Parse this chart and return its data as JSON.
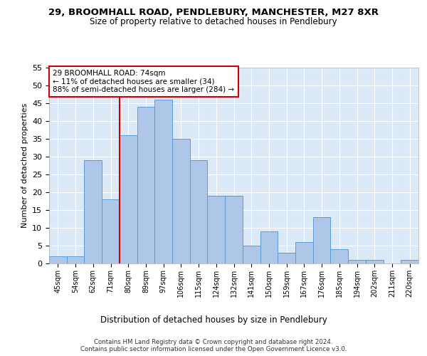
{
  "title1": "29, BROOMHALL ROAD, PENDLEBURY, MANCHESTER, M27 8XR",
  "title2": "Size of property relative to detached houses in Pendlebury",
  "xlabel": "Distribution of detached houses by size in Pendlebury",
  "ylabel": "Number of detached properties",
  "categories": [
    "45sqm",
    "54sqm",
    "62sqm",
    "71sqm",
    "80sqm",
    "89sqm",
    "97sqm",
    "106sqm",
    "115sqm",
    "124sqm",
    "132sqm",
    "141sqm",
    "150sqm",
    "159sqm",
    "167sqm",
    "176sqm",
    "185sqm",
    "194sqm",
    "202sqm",
    "211sqm",
    "220sqm"
  ],
  "values": [
    2,
    2,
    29,
    18,
    36,
    44,
    46,
    35,
    29,
    19,
    19,
    5,
    9,
    3,
    6,
    13,
    4,
    1,
    1,
    0,
    1
  ],
  "bar_color": "#aec6e8",
  "bar_edge_color": "#5b9bd5",
  "bar_width": 1.0,
  "vline_x": 3.5,
  "vline_color": "#cc0000",
  "annotation_text": "29 BROOMHALL ROAD: 74sqm\n← 11% of detached houses are smaller (34)\n88% of semi-detached houses are larger (284) →",
  "annotation_box_color": "#ffffff",
  "annotation_box_edge": "#cc0000",
  "ylim": [
    0,
    55
  ],
  "yticks": [
    0,
    5,
    10,
    15,
    20,
    25,
    30,
    35,
    40,
    45,
    50,
    55
  ],
  "footer": "Contains HM Land Registry data © Crown copyright and database right 2024.\nContains public sector information licensed under the Open Government Licence v3.0.",
  "fig_bg": "#ffffff",
  "plot_bg": "#dce9f7",
  "grid_color": "#ffffff"
}
